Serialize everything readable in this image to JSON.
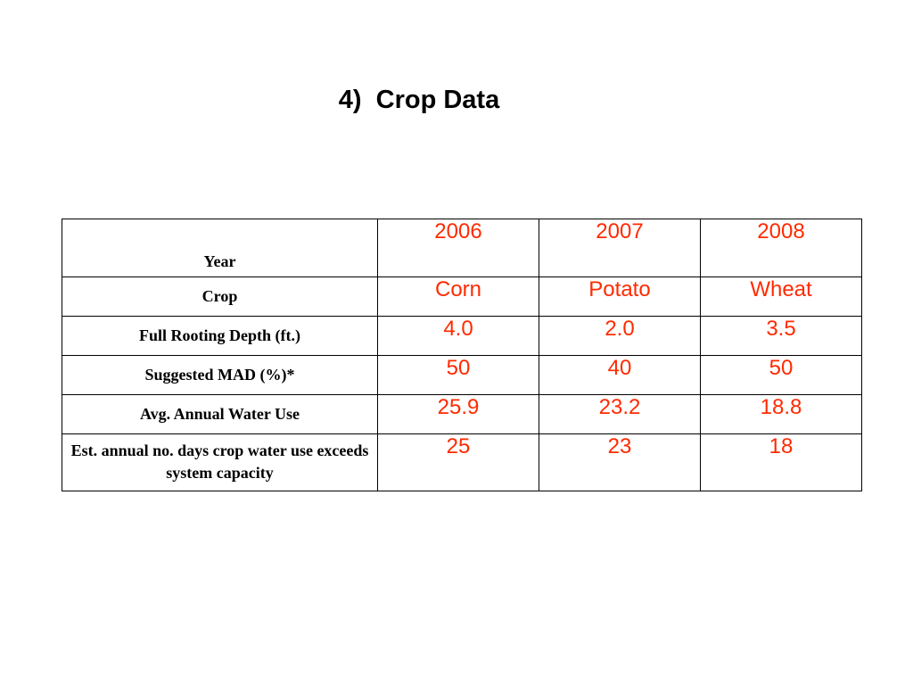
{
  "slide": {
    "title": "4)  Crop Data"
  },
  "table": {
    "years": [
      "2006",
      "2007",
      "2008"
    ],
    "rows": [
      {
        "label": "Year",
        "values": [
          "2006",
          "2007",
          "2008"
        ]
      },
      {
        "label": "Crop",
        "values": [
          "Corn",
          "Potato",
          "Wheat"
        ]
      },
      {
        "label": "Full Rooting Depth (ft.)",
        "values": [
          "4.0",
          "2.0",
          "3.5"
        ]
      },
      {
        "label": "Suggested MAD (%)*",
        "values": [
          "50",
          "40",
          "50"
        ]
      },
      {
        "label": "Avg. Annual Water Use",
        "values": [
          "25.9",
          "23.2",
          "18.8"
        ]
      },
      {
        "label": "Est. annual no. days crop water use exceeds system capacity",
        "values": [
          "25",
          "23",
          "18"
        ]
      }
    ]
  },
  "colors": {
    "value_text": "#ff2a00",
    "label_text": "#000000"
  }
}
